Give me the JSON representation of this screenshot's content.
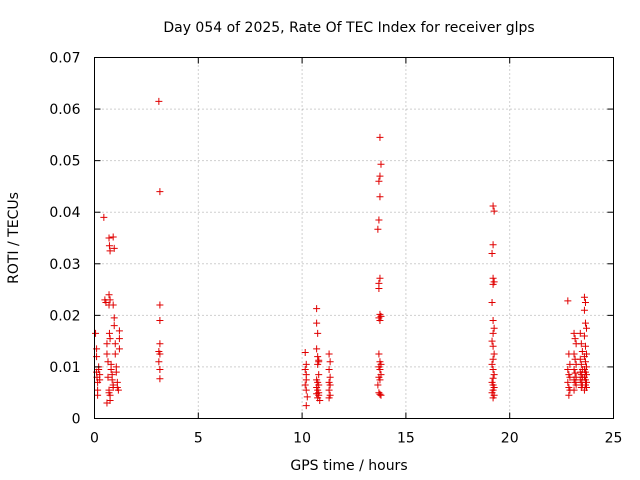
{
  "chart_data": {
    "type": "scatter",
    "title": "Day 054 of 2025, Rate Of TEC Index for receiver glps",
    "xlabel": "GPS time / hours",
    "ylabel": "ROTI / TECUs",
    "xlim": [
      0,
      25
    ],
    "ylim": [
      0,
      0.07
    ],
    "x_ticks": [
      "0",
      "5",
      "10",
      "15",
      "20",
      "25"
    ],
    "y_ticks": [
      "0",
      "0.01",
      "0.02",
      "0.03",
      "0.04",
      "0.05",
      "0.06",
      "0.07"
    ],
    "x_tick_values": [
      0,
      5,
      10,
      15,
      20,
      25
    ],
    "y_tick_values": [
      0,
      0.01,
      0.02,
      0.03,
      0.04,
      0.05,
      0.06,
      0.07
    ],
    "grid": true,
    "marker": "+",
    "color": "#e00000",
    "series": [
      {
        "name": "ROTI",
        "points": [
          [
            0.05,
            0.0165
          ],
          [
            0.1,
            0.012
          ],
          [
            0.1,
            0.009
          ],
          [
            0.12,
            0.008
          ],
          [
            0.15,
            0.007
          ],
          [
            0.15,
            0.0055
          ],
          [
            0.2,
            0.01
          ],
          [
            0.2,
            0.0095
          ],
          [
            0.25,
            0.0085
          ],
          [
            0.25,
            0.0075
          ],
          [
            0.1,
            0.0135
          ],
          [
            0.15,
            0.0045
          ],
          [
            0.45,
            0.039
          ],
          [
            0.5,
            0.023
          ],
          [
            0.55,
            0.0225
          ],
          [
            0.6,
            0.0145
          ],
          [
            0.6,
            0.0125
          ],
          [
            0.65,
            0.011
          ],
          [
            0.65,
            0.008
          ],
          [
            0.7,
            0.0055
          ],
          [
            0.7,
            0.005
          ],
          [
            0.75,
            0.0045
          ],
          [
            0.75,
            0.0035
          ],
          [
            0.6,
            0.003
          ],
          [
            0.7,
            0.035
          ],
          [
            0.72,
            0.0335
          ],
          [
            0.75,
            0.0325
          ],
          [
            0.7,
            0.024
          ],
          [
            0.75,
            0.023
          ],
          [
            0.7,
            0.022
          ],
          [
            0.72,
            0.0165
          ],
          [
            0.75,
            0.0155
          ],
          [
            0.8,
            0.0105
          ],
          [
            0.8,
            0.0095
          ],
          [
            0.85,
            0.0085
          ],
          [
            0.85,
            0.0075
          ],
          [
            0.9,
            0.0065
          ],
          [
            0.9,
            0.006
          ],
          [
            0.9,
            0.0352
          ],
          [
            0.95,
            0.033
          ],
          [
            0.9,
            0.022
          ],
          [
            0.95,
            0.0195
          ],
          [
            0.95,
            0.018
          ],
          [
            1.0,
            0.0145
          ],
          [
            1.0,
            0.0125
          ],
          [
            1.05,
            0.01
          ],
          [
            1.05,
            0.009
          ],
          [
            1.1,
            0.007
          ],
          [
            1.1,
            0.006
          ],
          [
            1.15,
            0.0055
          ],
          [
            1.2,
            0.017
          ],
          [
            1.2,
            0.0155
          ],
          [
            1.2,
            0.0135
          ],
          [
            3.1,
            0.0615
          ],
          [
            3.15,
            0.044
          ],
          [
            3.15,
            0.022
          ],
          [
            3.15,
            0.019
          ],
          [
            3.15,
            0.0145
          ],
          [
            3.1,
            0.013
          ],
          [
            3.15,
            0.0125
          ],
          [
            3.1,
            0.011
          ],
          [
            3.15,
            0.0095
          ],
          [
            3.15,
            0.0077
          ],
          [
            10.15,
            0.0128
          ],
          [
            10.2,
            0.0105
          ],
          [
            10.15,
            0.0095
          ],
          [
            10.2,
            0.0085
          ],
          [
            10.2,
            0.0075
          ],
          [
            10.15,
            0.0065
          ],
          [
            10.2,
            0.0055
          ],
          [
            10.25,
            0.0042
          ],
          [
            10.2,
            0.0025
          ],
          [
            10.7,
            0.0213
          ],
          [
            10.7,
            0.0185
          ],
          [
            10.75,
            0.0165
          ],
          [
            10.7,
            0.0135
          ],
          [
            10.75,
            0.012
          ],
          [
            10.8,
            0.0113
          ],
          [
            10.8,
            0.011
          ],
          [
            10.75,
            0.0105
          ],
          [
            10.8,
            0.0085
          ],
          [
            10.7,
            0.0075
          ],
          [
            10.75,
            0.007
          ],
          [
            10.8,
            0.0065
          ],
          [
            10.7,
            0.006
          ],
          [
            10.75,
            0.0055
          ],
          [
            10.8,
            0.005
          ],
          [
            10.7,
            0.0048
          ],
          [
            10.8,
            0.0045
          ],
          [
            10.75,
            0.004
          ],
          [
            10.85,
            0.0035
          ],
          [
            11.3,
            0.0125
          ],
          [
            11.35,
            0.011
          ],
          [
            11.3,
            0.0095
          ],
          [
            11.35,
            0.008
          ],
          [
            11.3,
            0.007
          ],
          [
            11.35,
            0.0065
          ],
          [
            11.3,
            0.0055
          ],
          [
            11.35,
            0.0045
          ],
          [
            11.3,
            0.004
          ],
          [
            13.75,
            0.0545
          ],
          [
            13.8,
            0.0493
          ],
          [
            13.75,
            0.047
          ],
          [
            13.7,
            0.046
          ],
          [
            13.75,
            0.043
          ],
          [
            13.7,
            0.0385
          ],
          [
            13.65,
            0.0367
          ],
          [
            13.75,
            0.0272
          ],
          [
            13.7,
            0.0262
          ],
          [
            13.7,
            0.0252
          ],
          [
            13.75,
            0.0202
          ],
          [
            13.8,
            0.0198
          ],
          [
            13.7,
            0.0195
          ],
          [
            13.75,
            0.019
          ],
          [
            13.7,
            0.0125
          ],
          [
            13.75,
            0.011
          ],
          [
            13.8,
            0.0105
          ],
          [
            13.7,
            0.01
          ],
          [
            13.75,
            0.0095
          ],
          [
            13.8,
            0.0085
          ],
          [
            13.7,
            0.008
          ],
          [
            13.75,
            0.0075
          ],
          [
            13.65,
            0.0065
          ],
          [
            13.7,
            0.005
          ],
          [
            13.75,
            0.0047
          ],
          [
            13.8,
            0.0045
          ],
          [
            19.2,
            0.0412
          ],
          [
            19.25,
            0.0402
          ],
          [
            19.2,
            0.0337
          ],
          [
            19.15,
            0.032
          ],
          [
            19.2,
            0.0272
          ],
          [
            19.25,
            0.0265
          ],
          [
            19.2,
            0.026
          ],
          [
            19.15,
            0.0225
          ],
          [
            19.2,
            0.019
          ],
          [
            19.25,
            0.0175
          ],
          [
            19.2,
            0.0165
          ],
          [
            19.15,
            0.015
          ],
          [
            19.2,
            0.014
          ],
          [
            19.25,
            0.0125
          ],
          [
            19.2,
            0.0115
          ],
          [
            19.15,
            0.0105
          ],
          [
            19.2,
            0.0095
          ],
          [
            19.25,
            0.0085
          ],
          [
            19.2,
            0.0078
          ],
          [
            19.15,
            0.007
          ],
          [
            19.2,
            0.0065
          ],
          [
            19.25,
            0.006
          ],
          [
            19.2,
            0.0055
          ],
          [
            19.15,
            0.005
          ],
          [
            19.25,
            0.0045
          ],
          [
            19.2,
            0.004
          ],
          [
            22.8,
            0.0228
          ],
          [
            22.85,
            0.0125
          ],
          [
            22.9,
            0.0105
          ],
          [
            22.8,
            0.0095
          ],
          [
            22.85,
            0.0085
          ],
          [
            22.9,
            0.008
          ],
          [
            22.8,
            0.007
          ],
          [
            22.85,
            0.006
          ],
          [
            22.9,
            0.0055
          ],
          [
            22.85,
            0.0045
          ],
          [
            23.1,
            0.0165
          ],
          [
            23.15,
            0.0155
          ],
          [
            23.2,
            0.0145
          ],
          [
            23.1,
            0.0125
          ],
          [
            23.15,
            0.0115
          ],
          [
            23.2,
            0.0105
          ],
          [
            23.1,
            0.0095
          ],
          [
            23.15,
            0.0088
          ],
          [
            23.2,
            0.008
          ],
          [
            23.1,
            0.0075
          ],
          [
            23.15,
            0.007
          ],
          [
            23.2,
            0.0065
          ],
          [
            23.1,
            0.0055
          ],
          [
            23.4,
            0.0165
          ],
          [
            23.45,
            0.0145
          ],
          [
            23.5,
            0.013
          ],
          [
            23.4,
            0.0115
          ],
          [
            23.45,
            0.0105
          ],
          [
            23.5,
            0.0095
          ],
          [
            23.4,
            0.009
          ],
          [
            23.45,
            0.0085
          ],
          [
            23.5,
            0.008
          ],
          [
            23.4,
            0.0075
          ],
          [
            23.45,
            0.007
          ],
          [
            23.5,
            0.0065
          ],
          [
            23.45,
            0.006
          ],
          [
            23.6,
            0.0235
          ],
          [
            23.65,
            0.0225
          ],
          [
            23.6,
            0.021
          ],
          [
            23.65,
            0.0185
          ],
          [
            23.7,
            0.0175
          ],
          [
            23.6,
            0.016
          ],
          [
            23.65,
            0.014
          ],
          [
            23.7,
            0.0125
          ],
          [
            23.6,
            0.012
          ],
          [
            23.65,
            0.011
          ],
          [
            23.7,
            0.01
          ],
          [
            23.6,
            0.0095
          ],
          [
            23.65,
            0.009
          ],
          [
            23.7,
            0.0085
          ],
          [
            23.6,
            0.008
          ],
          [
            23.65,
            0.0075
          ],
          [
            23.7,
            0.007
          ],
          [
            23.65,
            0.0065
          ],
          [
            23.7,
            0.006
          ],
          [
            23.6,
            0.0055
          ]
        ]
      }
    ]
  }
}
